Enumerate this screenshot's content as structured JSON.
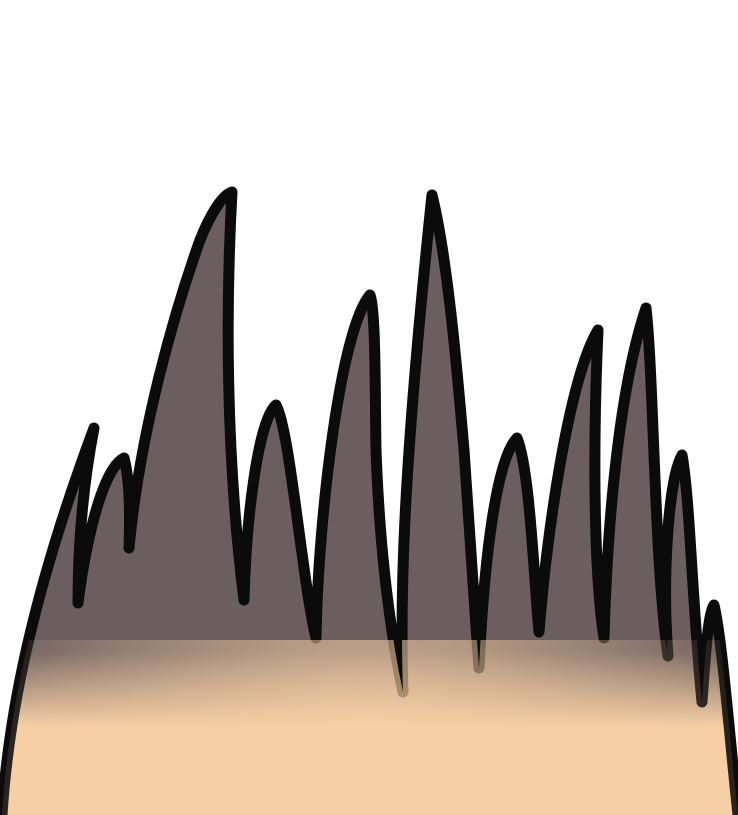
{
  "scene": {
    "subject": "spiky-hair-illustration",
    "colors": {
      "background": "#ffffff",
      "hair": "#6b5e5f",
      "skin": "#f6cfa4",
      "outline": "#0b0b0b"
    }
  }
}
